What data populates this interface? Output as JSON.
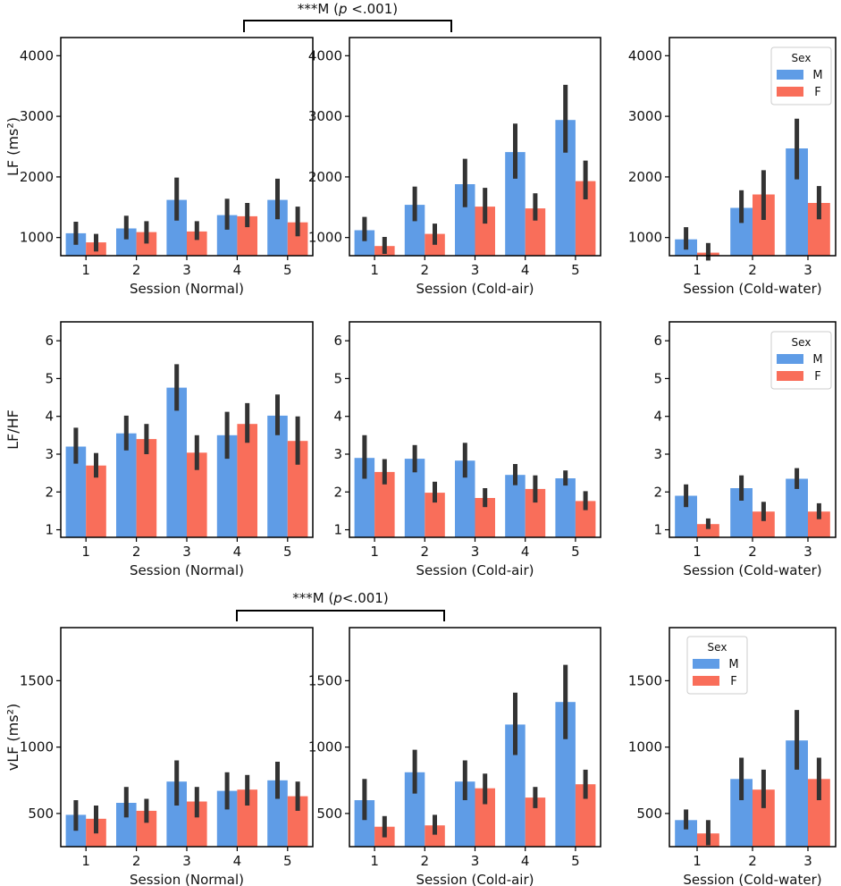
{
  "colors": {
    "M": "#5f9ce6",
    "F": "#f96e5a",
    "error_bar": "#333333",
    "axis": "#000000"
  },
  "chart_data": [
    {
      "id": "lf-normal",
      "type": "bar",
      "ylabel": "LF (ms²)",
      "xlabel": "Session (Normal)",
      "categories": [
        "1",
        "2",
        "3",
        "4",
        "5"
      ],
      "ylim": [
        700,
        4300
      ],
      "yticks": [
        1000,
        2000,
        3000,
        4000
      ],
      "series": [
        {
          "name": "M",
          "values": [
            1070,
            1150,
            1620,
            1370,
            1620
          ],
          "err_low": [
            880,
            970,
            1280,
            1130,
            1300
          ],
          "err_high": [
            1260,
            1360,
            1990,
            1640,
            1970
          ]
        },
        {
          "name": "F",
          "values": [
            920,
            1090,
            1100,
            1350,
            1250
          ],
          "err_low": [
            770,
            900,
            960,
            1170,
            1020
          ],
          "err_high": [
            1060,
            1270,
            1270,
            1570,
            1510
          ]
        }
      ]
    },
    {
      "id": "lf-coldair",
      "type": "bar",
      "ylabel": "",
      "xlabel": "Session (Cold-air)",
      "categories": [
        "1",
        "2",
        "3",
        "4",
        "5"
      ],
      "ylim": [
        700,
        4300
      ],
      "yticks": [
        1000,
        2000,
        3000,
        4000
      ],
      "series": [
        {
          "name": "M",
          "values": [
            1120,
            1540,
            1880,
            2410,
            2940
          ],
          "err_low": [
            940,
            1270,
            1500,
            1970,
            2400
          ],
          "err_high": [
            1340,
            1840,
            2300,
            2880,
            3520
          ]
        },
        {
          "name": "F",
          "values": [
            860,
            1060,
            1510,
            1480,
            1930
          ],
          "err_low": [
            730,
            880,
            1230,
            1280,
            1630
          ],
          "err_high": [
            1010,
            1230,
            1820,
            1730,
            2270
          ]
        }
      ]
    },
    {
      "id": "lf-coldwater",
      "type": "bar",
      "ylabel": "",
      "xlabel": "Session (Cold-water)",
      "categories": [
        "1",
        "2",
        "3"
      ],
      "ylim": [
        700,
        4300
      ],
      "yticks": [
        1000,
        2000,
        3000,
        4000
      ],
      "legend": {
        "title": "Sex",
        "entries": [
          "M",
          "F"
        ],
        "position": "top-right"
      },
      "series": [
        {
          "name": "M",
          "values": [
            970,
            1490,
            2470
          ],
          "err_low": [
            800,
            1240,
            1960
          ],
          "err_high": [
            1170,
            1780,
            2960
          ]
        },
        {
          "name": "F",
          "values": [
            750,
            1710,
            1570
          ],
          "err_low": [
            620,
            1290,
            1300
          ],
          "err_high": [
            910,
            2110,
            1850
          ]
        }
      ]
    },
    {
      "id": "lfhf-normal",
      "type": "bar",
      "ylabel": "LF/HF",
      "xlabel": "Session (Normal)",
      "categories": [
        "1",
        "2",
        "3",
        "4",
        "5"
      ],
      "ylim": [
        0.8,
        6.5
      ],
      "yticks": [
        1,
        2,
        3,
        4,
        5,
        6
      ],
      "series": [
        {
          "name": "M",
          "values": [
            3.2,
            3.55,
            4.76,
            3.5,
            4.02
          ],
          "err_low": [
            2.75,
            3.1,
            4.15,
            2.88,
            3.5
          ],
          "err_high": [
            3.7,
            4.02,
            5.38,
            4.12,
            4.58
          ]
        },
        {
          "name": "F",
          "values": [
            2.7,
            3.4,
            3.04,
            3.8,
            3.35
          ],
          "err_low": [
            2.38,
            3.0,
            2.58,
            3.3,
            2.72
          ],
          "err_high": [
            3.03,
            3.8,
            3.5,
            4.35,
            4.0
          ]
        }
      ]
    },
    {
      "id": "lfhf-coldair",
      "type": "bar",
      "ylabel": "",
      "xlabel": "Session (Cold-air)",
      "categories": [
        "1",
        "2",
        "3",
        "4",
        "5"
      ],
      "ylim": [
        0.8,
        6.5
      ],
      "yticks": [
        1,
        2,
        3,
        4,
        5,
        6
      ],
      "series": [
        {
          "name": "M",
          "values": [
            2.9,
            2.88,
            2.83,
            2.45,
            2.36
          ],
          "err_low": [
            2.35,
            2.52,
            2.38,
            2.18,
            2.17
          ],
          "err_high": [
            3.5,
            3.24,
            3.3,
            2.74,
            2.57
          ]
        },
        {
          "name": "F",
          "values": [
            2.53,
            1.98,
            1.84,
            2.08,
            1.76
          ],
          "err_low": [
            2.2,
            1.72,
            1.6,
            1.72,
            1.52
          ],
          "err_high": [
            2.87,
            2.27,
            2.1,
            2.44,
            2.02
          ]
        }
      ]
    },
    {
      "id": "lfhf-coldwater",
      "type": "bar",
      "ylabel": "",
      "xlabel": "Session (Cold-water)",
      "categories": [
        "1",
        "2",
        "3"
      ],
      "ylim": [
        0.8,
        6.5
      ],
      "yticks": [
        1,
        2,
        3,
        4,
        5,
        6
      ],
      "legend": {
        "title": "Sex",
        "entries": [
          "M",
          "F"
        ],
        "position": "top-right"
      },
      "series": [
        {
          "name": "M",
          "values": [
            1.9,
            2.1,
            2.35
          ],
          "err_low": [
            1.6,
            1.77,
            2.08
          ],
          "err_high": [
            2.2,
            2.44,
            2.63
          ]
        },
        {
          "name": "F",
          "values": [
            1.15,
            1.48,
            1.48
          ],
          "err_low": [
            1.02,
            1.23,
            1.28
          ],
          "err_high": [
            1.3,
            1.74,
            1.7
          ]
        }
      ]
    },
    {
      "id": "vlf-normal",
      "type": "bar",
      "ylabel": "vLF (ms²)",
      "xlabel": "Session (Normal)",
      "categories": [
        "1",
        "2",
        "3",
        "4",
        "5"
      ],
      "ylim": [
        250,
        1900
      ],
      "yticks": [
        500,
        1000,
        1500
      ],
      "series": [
        {
          "name": "M",
          "values": [
            490,
            580,
            740,
            670,
            750
          ],
          "err_low": [
            370,
            470,
            560,
            530,
            610
          ],
          "err_high": [
            600,
            700,
            900,
            810,
            890
          ]
        },
        {
          "name": "F",
          "values": [
            460,
            520,
            590,
            680,
            630
          ],
          "err_low": [
            350,
            430,
            470,
            560,
            520
          ],
          "err_high": [
            560,
            610,
            700,
            790,
            740
          ]
        }
      ]
    },
    {
      "id": "vlf-coldair",
      "type": "bar",
      "ylabel": "",
      "xlabel": "Session (Cold-air)",
      "categories": [
        "1",
        "2",
        "3",
        "4",
        "5"
      ],
      "ylim": [
        250,
        1900
      ],
      "yticks": [
        500,
        1000,
        1500
      ],
      "series": [
        {
          "name": "M",
          "values": [
            600,
            810,
            740,
            1170,
            1340
          ],
          "err_low": [
            450,
            650,
            600,
            940,
            1060
          ],
          "err_high": [
            760,
            980,
            900,
            1410,
            1620
          ]
        },
        {
          "name": "F",
          "values": [
            400,
            410,
            690,
            620,
            720
          ],
          "err_low": [
            320,
            340,
            570,
            540,
            610
          ],
          "err_high": [
            480,
            490,
            800,
            700,
            830
          ]
        }
      ]
    },
    {
      "id": "vlf-coldwater",
      "type": "bar",
      "ylabel": "",
      "xlabel": "Session (Cold-water)",
      "categories": [
        "1",
        "2",
        "3"
      ],
      "ylim": [
        250,
        1900
      ],
      "yticks": [
        500,
        1000,
        1500
      ],
      "legend": {
        "title": "Sex",
        "entries": [
          "M",
          "F"
        ],
        "position": "top-left"
      },
      "series": [
        {
          "name": "M",
          "values": [
            450,
            760,
            1050
          ],
          "err_low": [
            380,
            600,
            830
          ],
          "err_high": [
            530,
            920,
            1280
          ]
        },
        {
          "name": "F",
          "values": [
            350,
            680,
            760
          ],
          "err_low": [
            260,
            540,
            600
          ],
          "err_high": [
            450,
            830,
            920
          ]
        }
      ]
    }
  ],
  "annotations": [
    {
      "id": "sig-top",
      "label_prefix": "***M (",
      "label_p": "p",
      "label_suffix": " <.001)"
    },
    {
      "id": "sig-bottom",
      "label_prefix": "***M (",
      "label_p": "p",
      "label_suffix": "<.001)"
    }
  ]
}
